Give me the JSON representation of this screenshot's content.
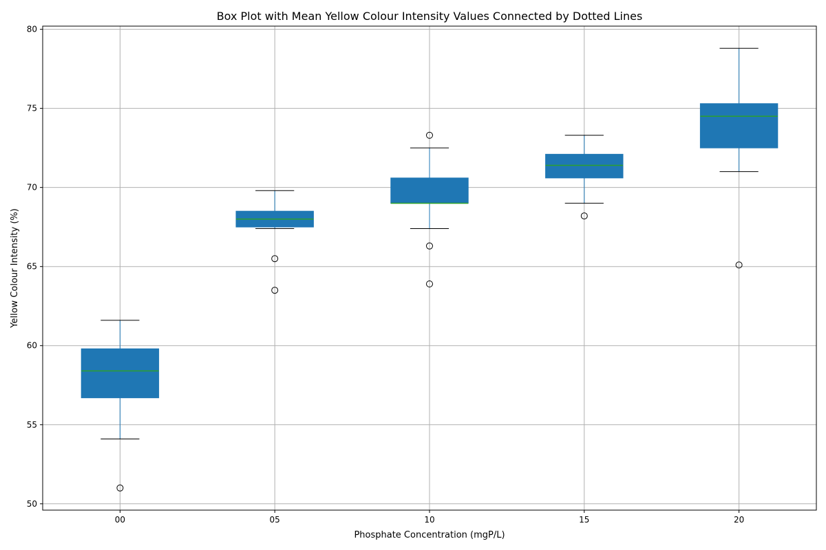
{
  "chart_data": {
    "type": "box",
    "title": "Box Plot with Mean Yellow Colour Intensity Values Connected by Dotted Lines",
    "xlabel": "Phosphate Concentration (mgP/L)",
    "ylabel": "Yellow Colour Intensity (%)",
    "ylim": [
      49.6,
      80.2
    ],
    "yticks": [
      50,
      55,
      60,
      65,
      70,
      75,
      80
    ],
    "grid": true,
    "colors": {
      "box": "#1f77b4",
      "median": "#2ca02c",
      "whisker": "#1f77b4",
      "cap": "#000000",
      "flier": "#000000",
      "grid": "#b0b0b0"
    },
    "categories": [
      "00",
      "05",
      "10",
      "15",
      "20"
    ],
    "boxes": [
      {
        "category": "00",
        "whisker_low": 54.1,
        "q1": 56.7,
        "median": 58.4,
        "q3": 59.8,
        "whisker_high": 61.6,
        "outliers": [
          51.0
        ]
      },
      {
        "category": "05",
        "whisker_low": 67.4,
        "q1": 67.5,
        "median": 68.0,
        "q3": 68.5,
        "whisker_high": 69.8,
        "outliers": [
          65.5,
          63.5
        ]
      },
      {
        "category": "10",
        "whisker_low": 67.4,
        "q1": 69.0,
        "median": 69.0,
        "q3": 70.6,
        "whisker_high": 72.5,
        "outliers": [
          73.3,
          66.3,
          63.9
        ]
      },
      {
        "category": "15",
        "whisker_low": 69.0,
        "q1": 70.6,
        "median": 71.4,
        "q3": 72.1,
        "whisker_high": 73.3,
        "outliers": [
          68.2
        ]
      },
      {
        "category": "20",
        "whisker_low": 71.0,
        "q1": 72.5,
        "median": 74.5,
        "q3": 75.3,
        "whisker_high": 78.8,
        "outliers": [
          65.1
        ]
      }
    ]
  }
}
